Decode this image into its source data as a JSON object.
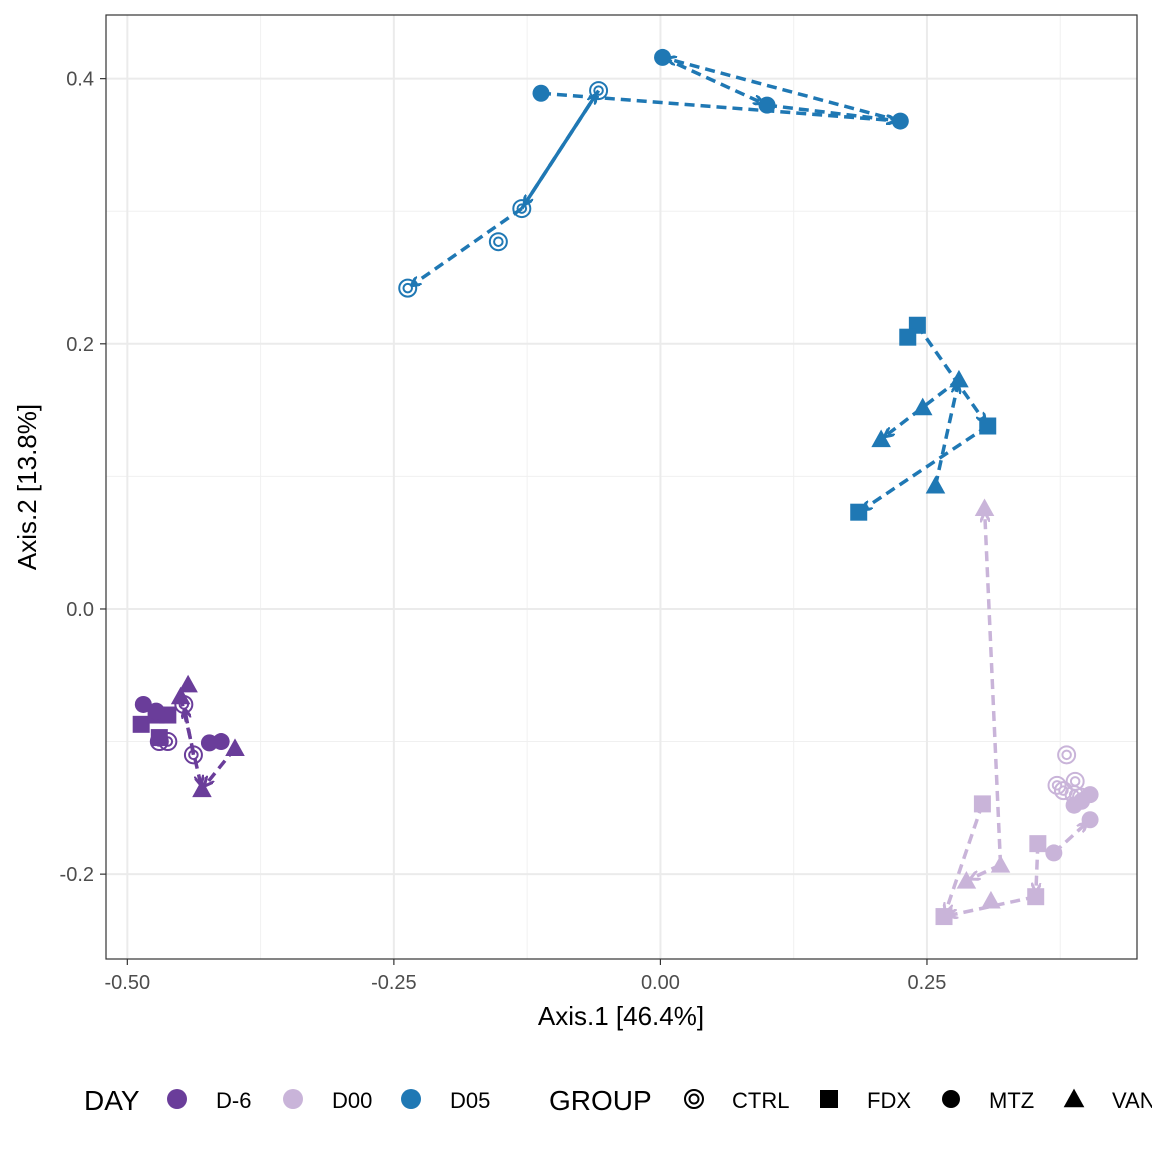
{
  "chart_data": {
    "type": "scatter",
    "xlabel": "Axis.1   [46.4%]",
    "ylabel": "Axis.2   [13.8%]",
    "xlim": [
      -0.52,
      0.447
    ],
    "ylim": [
      -0.264,
      0.448
    ],
    "x_ticks": [
      -0.5,
      -0.25,
      0.0,
      0.25
    ],
    "x_tick_labels": [
      "-0.50",
      "-0.25",
      "0.00",
      "0.25"
    ],
    "y_ticks": [
      -0.2,
      0.0,
      0.2,
      0.4
    ],
    "y_tick_labels": [
      "-0.2",
      "0.0",
      "0.2",
      "0.4"
    ],
    "grid": true,
    "colors": {
      "D-6": "#6a3d9a",
      "D00": "#c9b4d9",
      "D05": "#1f78b4"
    },
    "legend": {
      "position": "bottom",
      "day_title": "DAY",
      "day_entries": [
        "D-6",
        "D00",
        "D05"
      ],
      "group_title": "GROUP",
      "group_entries": [
        "CTRL",
        "FDX",
        "MTZ",
        "VAN"
      ]
    },
    "series": [
      {
        "day": "D05",
        "group": "CTRL",
        "points": [
          [
            -0.058,
            0.391
          ],
          [
            -0.13,
            0.302
          ],
          [
            -0.152,
            0.277
          ],
          [
            -0.237,
            0.242
          ]
        ],
        "arrows": [
          [
            0,
            1
          ],
          [
            1,
            3
          ]
        ],
        "solid_arrows": [
          [
            1,
            0
          ]
        ]
      },
      {
        "day": "D05",
        "group": "MTZ",
        "points": [
          [
            -0.112,
            0.389
          ],
          [
            0.002,
            0.416
          ],
          [
            0.1,
            0.38
          ],
          [
            0.225,
            0.368
          ]
        ],
        "arrows": [
          [
            0,
            3
          ],
          [
            3,
            1
          ],
          [
            1,
            2
          ],
          [
            2,
            3
          ]
        ],
        "solid_arrows": []
      },
      {
        "day": "D05",
        "group": "FDX",
        "points": [
          [
            0.241,
            0.214
          ],
          [
            0.232,
            0.205
          ],
          [
            0.307,
            0.138
          ],
          [
            0.186,
            0.073
          ]
        ],
        "arrows": [
          [
            0,
            2
          ],
          [
            2,
            3
          ]
        ],
        "solid_arrows": []
      },
      {
        "day": "D05",
        "group": "VAN",
        "points": [
          [
            0.28,
            0.173
          ],
          [
            0.246,
            0.152
          ],
          [
            0.207,
            0.128
          ],
          [
            0.258,
            0.093
          ]
        ],
        "arrows": [
          [
            3,
            0
          ],
          [
            0,
            2
          ]
        ],
        "solid_arrows": []
      },
      {
        "day": "D00",
        "group": "CTRL",
        "points": [
          [
            0.381,
            -0.11
          ],
          [
            0.389,
            -0.13
          ],
          [
            0.388,
            -0.14
          ],
          [
            0.378,
            -0.137
          ],
          [
            0.372,
            -0.133
          ],
          [
            0.395,
            -0.142
          ]
        ],
        "arrows": [],
        "solid_arrows": []
      },
      {
        "day": "D00",
        "group": "MTZ",
        "points": [
          [
            0.403,
            -0.159
          ],
          [
            0.369,
            -0.184
          ],
          [
            0.395,
            -0.145
          ],
          [
            0.403,
            -0.14
          ],
          [
            0.388,
            -0.148
          ]
        ],
        "arrows": [
          [
            1,
            0
          ]
        ],
        "solid_arrows": []
      },
      {
        "day": "D00",
        "group": "FDX",
        "points": [
          [
            0.302,
            -0.147
          ],
          [
            0.266,
            -0.232
          ],
          [
            0.354,
            -0.177
          ],
          [
            0.352,
            -0.217
          ]
        ],
        "arrows": [
          [
            0,
            1
          ],
          [
            3,
            1
          ],
          [
            2,
            3
          ]
        ],
        "solid_arrows": []
      },
      {
        "day": "D00",
        "group": "VAN",
        "points": [
          [
            0.304,
            0.076
          ],
          [
            0.319,
            -0.193
          ],
          [
            0.287,
            -0.205
          ],
          [
            0.31,
            -0.22
          ]
        ],
        "arrows": [
          [
            1,
            0
          ],
          [
            1,
            2
          ]
        ],
        "solid_arrows": []
      },
      {
        "day": "D-6",
        "group": "CTRL",
        "points": [
          [
            -0.47,
            -0.1
          ],
          [
            -0.462,
            -0.1
          ],
          [
            -0.438,
            -0.11
          ],
          [
            -0.447,
            -0.072
          ]
        ],
        "arrows": [
          [
            2,
            3
          ]
        ],
        "solid_arrows": []
      },
      {
        "day": "D-6",
        "group": "FDX",
        "points": [
          [
            -0.487,
            -0.087
          ],
          [
            -0.473,
            -0.08
          ],
          [
            -0.462,
            -0.08
          ],
          [
            -0.47,
            -0.097
          ]
        ],
        "arrows": [],
        "solid_arrows": []
      },
      {
        "day": "D-6",
        "group": "MTZ",
        "points": [
          [
            -0.485,
            -0.072
          ],
          [
            -0.473,
            -0.077
          ],
          [
            -0.412,
            -0.1
          ],
          [
            -0.423,
            -0.101
          ]
        ],
        "arrows": [],
        "solid_arrows": []
      },
      {
        "day": "D-6",
        "group": "VAN",
        "points": [
          [
            -0.443,
            -0.057
          ],
          [
            -0.45,
            -0.066
          ],
          [
            -0.43,
            -0.136
          ],
          [
            -0.399,
            -0.105
          ]
        ],
        "arrows": [
          [
            1,
            2
          ],
          [
            3,
            2
          ]
        ],
        "solid_arrows": []
      }
    ]
  }
}
